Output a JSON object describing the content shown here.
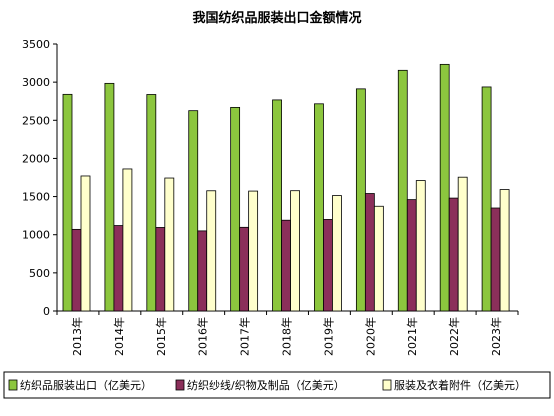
{
  "chart_data": {
    "type": "bar",
    "title": "我国纺织品服装出口金额情况",
    "categories": [
      "2013年",
      "2014年",
      "2015年",
      "2016年",
      "2017年",
      "2018年",
      "2019年",
      "2020年",
      "2021年",
      "2022年",
      "2023年"
    ],
    "series": [
      {
        "name": "纺织品服装出口（亿美元）",
        "color": "#8cc63e",
        "values": [
          2840,
          2984,
          2838,
          2626,
          2669,
          2767,
          2716,
          2912,
          3155,
          3233,
          2937
        ]
      },
      {
        "name": "纺织纱线/织物及制品（亿美元）",
        "color": "#8b2f5a",
        "values": [
          1070,
          1120,
          1095,
          1050,
          1097,
          1190,
          1200,
          1540,
          1460,
          1480,
          1350
        ]
      },
      {
        "name": "服装及衣着附件（亿美元）",
        "color": "#ffffcc",
        "values": [
          1770,
          1862,
          1743,
          1576,
          1572,
          1577,
          1513,
          1373,
          1710,
          1754,
          1592
        ]
      }
    ],
    "yticks": [
      0,
      500,
      1000,
      1500,
      2000,
      2500,
      3000,
      3500
    ],
    "ylim": [
      0,
      3500
    ],
    "grid": false,
    "legend": "bottom"
  }
}
